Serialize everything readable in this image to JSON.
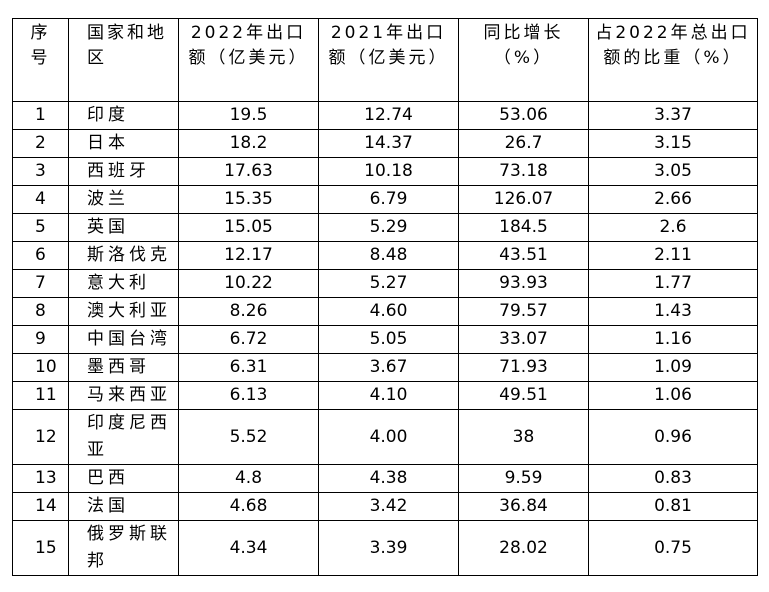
{
  "table": {
    "header": [
      "序号",
      "国家和地区",
      "2022年出口额（亿美元）",
      "2021年出口额（亿美元）",
      "同比增长（%）",
      "占2022年总出口额的比重（%）"
    ],
    "rows": [
      [
        "1",
        "印度",
        "19.5",
        "12.74",
        "53.06",
        "3.37"
      ],
      [
        "2",
        "日本",
        "18.2",
        "14.37",
        "26.7",
        "3.15"
      ],
      [
        "3",
        "西班牙",
        "17.63",
        "10.18",
        "73.18",
        "3.05"
      ],
      [
        "4",
        "波兰",
        "15.35",
        "6.79",
        "126.07",
        "2.66"
      ],
      [
        "5",
        "英国",
        "15.05",
        "5.29",
        "184.5",
        "2.6"
      ],
      [
        "6",
        "斯洛伐克",
        "12.17",
        "8.48",
        "43.51",
        "2.11"
      ],
      [
        "7",
        "意大利",
        "10.22",
        "5.27",
        "93.93",
        "1.77"
      ],
      [
        "8",
        "澳大利亚",
        "8.26",
        "4.60",
        "79.57",
        "1.43"
      ],
      [
        "9",
        "中国台湾",
        "6.72",
        "5.05",
        "33.07",
        "1.16"
      ],
      [
        "10",
        "墨西哥",
        "6.31",
        "3.67",
        "71.93",
        "1.09"
      ],
      [
        "11",
        "马来西亚",
        "6.13",
        "4.10",
        "49.51",
        "1.06"
      ],
      [
        "12",
        "印度尼西亚",
        "5.52",
        "4.00",
        "38",
        "0.96"
      ],
      [
        "13",
        "巴西",
        "4.8",
        "4.38",
        "9.59",
        "0.83"
      ],
      [
        "14",
        "法国",
        "4.68",
        "3.42",
        "36.84",
        "0.81"
      ],
      [
        "15",
        "俄罗斯联邦",
        "4.34",
        "3.39",
        "28.02",
        "0.75"
      ]
    ]
  }
}
